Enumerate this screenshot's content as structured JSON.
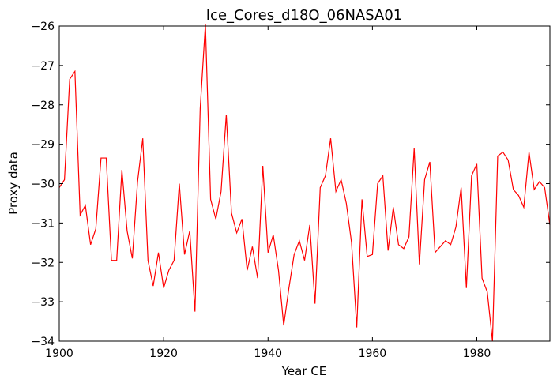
{
  "chart_data": {
    "type": "line",
    "title": "Ice_Cores_d18O_06NASA01",
    "xlabel": "Year CE",
    "ylabel": "Proxy data",
    "xlim": [
      1900,
      1994
    ],
    "ylim": [
      -34,
      -26
    ],
    "xticks": [
      1900,
      1920,
      1940,
      1960,
      1980
    ],
    "yticks": [
      -34,
      -33,
      -32,
      -31,
      -30,
      -29,
      -28,
      -27,
      -26
    ],
    "ytick_labels": [
      "−34",
      "−33",
      "−32",
      "−31",
      "−30",
      "−29",
      "−28",
      "−27",
      "−26"
    ],
    "grid": false,
    "line_color": "#ff0000",
    "series": [
      {
        "x": [
          1900,
          1901,
          1902,
          1903,
          1904,
          1905,
          1906,
          1907,
          1908,
          1909,
          1910,
          1911,
          1912,
          1913,
          1914,
          1915,
          1916,
          1917,
          1918,
          1919,
          1920,
          1921,
          1922,
          1923,
          1924,
          1925,
          1926,
          1927,
          1928,
          1929,
          1930,
          1931,
          1932,
          1933,
          1934,
          1935,
          1936,
          1937,
          1938,
          1939,
          1940,
          1941,
          1942,
          1943,
          1944,
          1945,
          1946,
          1947,
          1948,
          1949,
          1950,
          1951,
          1952,
          1953,
          1954,
          1955,
          1956,
          1957,
          1958,
          1959,
          1960,
          1961,
          1962,
          1963,
          1964,
          1965,
          1966,
          1967,
          1968,
          1969,
          1970,
          1971,
          1972,
          1973,
          1974,
          1975,
          1976,
          1977,
          1978,
          1979,
          1980,
          1981,
          1982,
          1983,
          1984,
          1985,
          1986,
          1987,
          1988,
          1989,
          1990,
          1991,
          1992,
          1993,
          1994
        ],
        "values": [
          -30.1,
          -29.9,
          -27.35,
          -27.15,
          -30.8,
          -30.55,
          -31.55,
          -31.15,
          -29.35,
          -29.35,
          -31.95,
          -31.95,
          -29.65,
          -31.2,
          -31.9,
          -29.95,
          -28.85,
          -31.95,
          -32.6,
          -31.75,
          -32.65,
          -32.2,
          -31.95,
          -30.0,
          -31.8,
          -31.2,
          -33.25,
          -28.1,
          -25.95,
          -30.4,
          -30.9,
          -30.2,
          -28.25,
          -30.75,
          -31.25,
          -30.9,
          -32.2,
          -31.6,
          -32.4,
          -29.55,
          -31.75,
          -31.3,
          -32.2,
          -33.6,
          -32.65,
          -31.8,
          -31.45,
          -31.95,
          -31.05,
          -33.05,
          -30.1,
          -29.8,
          -28.85,
          -30.2,
          -29.9,
          -30.5,
          -31.5,
          -33.65,
          -30.4,
          -31.85,
          -31.8,
          -30.0,
          -29.8,
          -31.7,
          -30.6,
          -31.55,
          -31.65,
          -31.35,
          -29.1,
          -32.05,
          -29.9,
          -29.45,
          -31.75,
          -31.6,
          -31.45,
          -31.55,
          -31.1,
          -30.1,
          -32.65,
          -29.8,
          -29.5,
          -32.4,
          -32.75,
          -34.0,
          -29.3,
          -29.2,
          -29.4,
          -30.15,
          -30.3,
          -30.6,
          -29.2,
          -30.15,
          -29.95,
          -30.1,
          -31.05
        ]
      }
    ]
  }
}
